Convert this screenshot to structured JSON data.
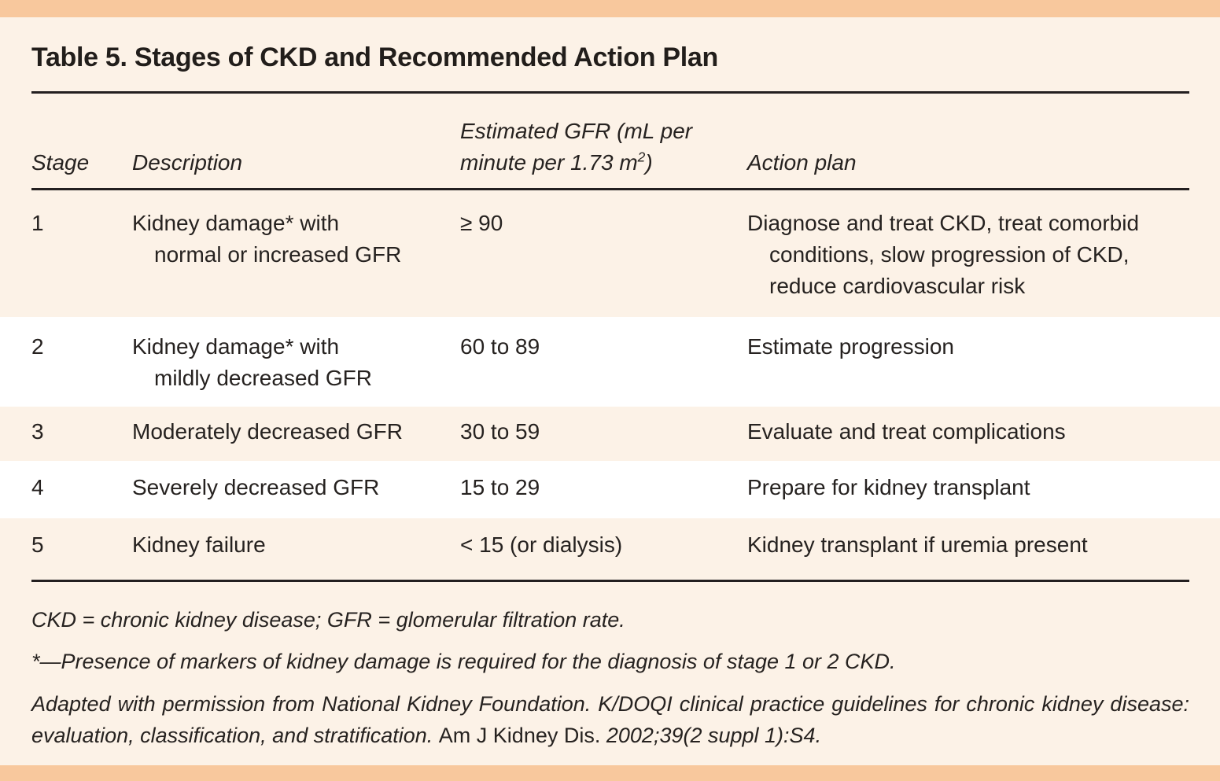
{
  "title": "Table 5. Stages of CKD and Recommended Action Plan",
  "table": {
    "headers": {
      "stage": "Stage",
      "description": "Description",
      "gfr_line1": "Estimated GFR (mL per",
      "gfr_line2_pre": "minute per 1.73 m",
      "gfr_sup": "2",
      "gfr_line2_post": ")",
      "action": "Action plan"
    },
    "rows": [
      {
        "stage": "1",
        "description_lines": [
          "Kidney damage* with",
          "normal or increased GFR"
        ],
        "gfr": "≥ 90",
        "action_lines": [
          "Diagnose and treat CKD, treat comorbid",
          "conditions, slow progression of CKD,",
          "reduce cardiovascular risk"
        ]
      },
      {
        "stage": "2",
        "description_lines": [
          "Kidney damage* with",
          "mildly decreased GFR"
        ],
        "gfr": "60 to 89",
        "action_lines": [
          "Estimate progression"
        ]
      },
      {
        "stage": "3",
        "description_lines": [
          "Moderately decreased GFR"
        ],
        "gfr": "30 to 59",
        "action_lines": [
          "Evaluate and treat complications"
        ]
      },
      {
        "stage": "4",
        "description_lines": [
          "Severely decreased GFR"
        ],
        "gfr": "15 to 29",
        "action_lines": [
          "Prepare for kidney transplant"
        ]
      },
      {
        "stage": "5",
        "description_lines": [
          "Kidney failure"
        ],
        "gfr": "< 15 (or dialysis)",
        "action_lines": [
          "Kidney transplant if uremia present"
        ]
      }
    ]
  },
  "footnotes": {
    "abbreviations": "CKD = chronic kidney disease; GFR = glomerular filtration rate.",
    "asterisk": "*—Presence of markers of kidney damage is required for the diagnosis of stage 1 or 2 CKD.",
    "citation_italic1": "Adapted with permission from National Kidney Foundation. K/DOQI clinical practice guidelines for chronic kidney disease: evaluation, classification, and stratification.",
    "citation_roman": "Am J Kidney Dis.",
    "citation_italic2": "2002;39(2 suppl 1):S4."
  },
  "colors": {
    "band": "#F8C89D",
    "background": "#FCF2E7",
    "row_alt": "#FFFFFF",
    "text": "#262220",
    "rule": "#231F20"
  }
}
